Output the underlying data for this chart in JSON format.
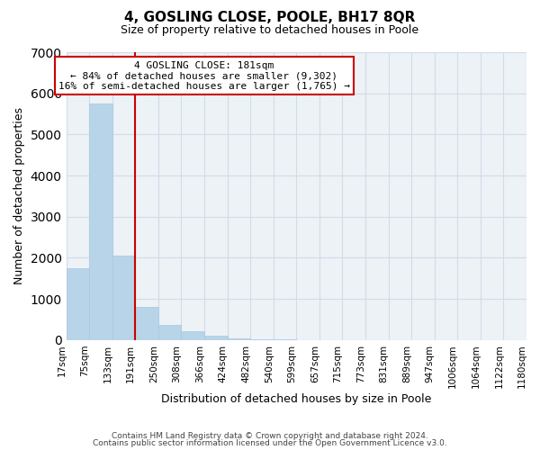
{
  "title": "4, GOSLING CLOSE, POOLE, BH17 8QR",
  "subtitle": "Size of property relative to detached houses in Poole",
  "xlabel": "Distribution of detached houses by size in Poole",
  "ylabel": "Number of detached properties",
  "footer_lines": [
    "Contains HM Land Registry data © Crown copyright and database right 2024.",
    "Contains public sector information licensed under the Open Government Licence v3.0."
  ],
  "annotation_line1": "4 GOSLING CLOSE: 181sqm",
  "annotation_line2": "← 84% of detached houses are smaller (9,302)",
  "annotation_line3": "16% of semi-detached houses are larger (1,765) →",
  "bar_color": "#b8d4e8",
  "bar_edge_color": "#a8c8e0",
  "marker_line_color": "#cc0000",
  "bin_labels": [
    "17sqm",
    "75sqm",
    "133sqm",
    "191sqm",
    "250sqm",
    "308sqm",
    "366sqm",
    "424sqm",
    "482sqm",
    "540sqm",
    "599sqm",
    "657sqm",
    "715sqm",
    "773sqm",
    "831sqm",
    "889sqm",
    "947sqm",
    "1006sqm",
    "1064sqm",
    "1122sqm",
    "1180sqm"
  ],
  "bar_heights": [
    1750,
    5750,
    2060,
    800,
    370,
    225,
    100,
    50,
    25,
    10,
    5,
    2,
    1,
    0,
    0,
    0,
    0,
    0,
    0,
    0
  ],
  "ylim": [
    0,
    7000
  ],
  "yticks": [
    0,
    1000,
    2000,
    3000,
    4000,
    5000,
    6000,
    7000
  ],
  "grid_color": "#d0dce8",
  "background_color": "#edf2f7",
  "figsize": [
    6.0,
    5.0
  ],
  "dpi": 100,
  "marker_bar_index": 2.5
}
